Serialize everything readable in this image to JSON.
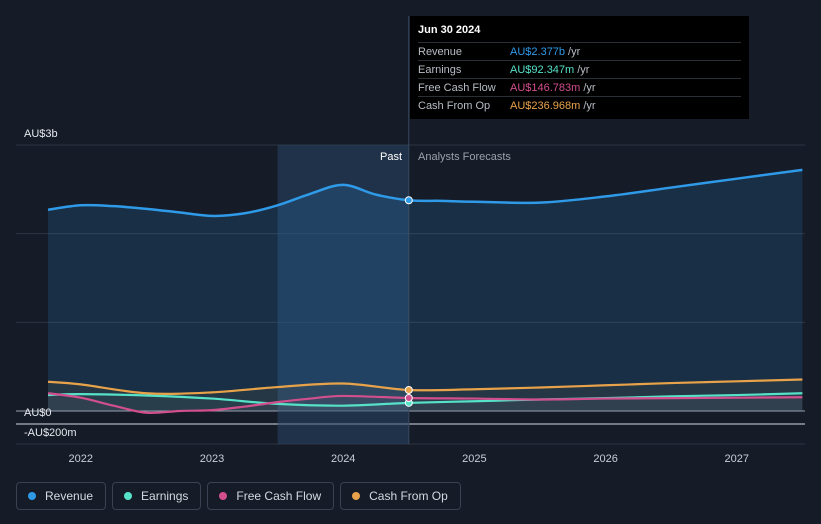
{
  "tooltip": {
    "date": "Jun 30 2024",
    "rows": [
      {
        "name": "Revenue",
        "value": "AU$2.377b",
        "unit": "/yr",
        "color": "#2f9ae8"
      },
      {
        "name": "Earnings",
        "value": "AU$92.347m",
        "unit": "/yr",
        "color": "#56e2c8"
      },
      {
        "name": "Free Cash Flow",
        "value": "AU$146.783m",
        "unit": "/yr",
        "color": "#d24f8d"
      },
      {
        "name": "Cash From Op",
        "value": "AU$236.968m",
        "unit": "/yr",
        "color": "#e8a34a"
      }
    ]
  },
  "legend": [
    {
      "label": "Revenue",
      "color": "#2f9ae8"
    },
    {
      "label": "Earnings",
      "color": "#56e2c8"
    },
    {
      "label": "Free Cash Flow",
      "color": "#d24f8d"
    },
    {
      "label": "Cash From Op",
      "color": "#e8a34a"
    }
  ],
  "chart_data": {
    "type": "area",
    "y_axis_labels": {
      "top": "AU$3b",
      "zero": "AU$0",
      "bottom": "-AU$200m"
    },
    "ylim": [
      -200,
      3000
    ],
    "xlim": [
      2021.7,
      2027.5
    ],
    "x_ticks": [
      {
        "value": 2022,
        "label": "2022"
      },
      {
        "value": 2023,
        "label": "2023"
      },
      {
        "value": 2024,
        "label": "2024"
      },
      {
        "value": 2025,
        "label": "2025"
      },
      {
        "value": 2026,
        "label": "2026"
      },
      {
        "value": 2027,
        "label": "2027"
      }
    ],
    "gridlines": [
      3000,
      2000,
      1000,
      0
    ],
    "past_label": "Past",
    "forecast_label": "Analysts Forecasts",
    "highlight_start": 2023.5,
    "divider": 2024.5,
    "series": [
      {
        "name": "Revenue",
        "color": "#2f9ae8",
        "fill": true,
        "points": [
          [
            2021.75,
            2270
          ],
          [
            2022.0,
            2320
          ],
          [
            2022.25,
            2310
          ],
          [
            2022.5,
            2280
          ],
          [
            2022.75,
            2240
          ],
          [
            2023.0,
            2200
          ],
          [
            2023.25,
            2230
          ],
          [
            2023.5,
            2320
          ],
          [
            2023.75,
            2450
          ],
          [
            2024.0,
            2550
          ],
          [
            2024.25,
            2440
          ],
          [
            2024.5,
            2377
          ],
          [
            2024.75,
            2370
          ],
          [
            2025.0,
            2360
          ],
          [
            2025.5,
            2350
          ],
          [
            2026.0,
            2420
          ],
          [
            2026.5,
            2520
          ],
          [
            2027.0,
            2620
          ],
          [
            2027.5,
            2720
          ]
        ]
      },
      {
        "name": "Earnings",
        "color": "#56e2c8",
        "fill": false,
        "points": [
          [
            2021.75,
            180
          ],
          [
            2022.0,
            190
          ],
          [
            2022.5,
            175
          ],
          [
            2023.0,
            140
          ],
          [
            2023.5,
            80
          ],
          [
            2024.0,
            60
          ],
          [
            2024.5,
            92
          ],
          [
            2025.0,
            110
          ],
          [
            2025.5,
            130
          ],
          [
            2026.0,
            145
          ],
          [
            2026.5,
            165
          ],
          [
            2027.0,
            180
          ],
          [
            2027.5,
            200
          ]
        ]
      },
      {
        "name": "Free Cash Flow",
        "color": "#d24f8d",
        "fill": false,
        "points": [
          [
            2021.75,
            200
          ],
          [
            2022.0,
            150
          ],
          [
            2022.25,
            60
          ],
          [
            2022.5,
            -20
          ],
          [
            2022.75,
            0
          ],
          [
            2023.0,
            10
          ],
          [
            2023.25,
            50
          ],
          [
            2023.5,
            100
          ],
          [
            2023.75,
            140
          ],
          [
            2024.0,
            170
          ],
          [
            2024.5,
            147
          ],
          [
            2025.0,
            140
          ],
          [
            2025.5,
            130
          ],
          [
            2026.0,
            140
          ],
          [
            2026.5,
            145
          ],
          [
            2027.0,
            150
          ],
          [
            2027.5,
            155
          ]
        ]
      },
      {
        "name": "Cash From Op",
        "color": "#e8a34a",
        "fill": false,
        "points": [
          [
            2021.75,
            330
          ],
          [
            2022.0,
            300
          ],
          [
            2022.5,
            200
          ],
          [
            2023.0,
            210
          ],
          [
            2023.5,
            270
          ],
          [
            2024.0,
            310
          ],
          [
            2024.5,
            237
          ],
          [
            2025.0,
            245
          ],
          [
            2025.5,
            265
          ],
          [
            2026.0,
            290
          ],
          [
            2026.5,
            315
          ],
          [
            2027.0,
            335
          ],
          [
            2027.5,
            355
          ]
        ]
      }
    ]
  }
}
